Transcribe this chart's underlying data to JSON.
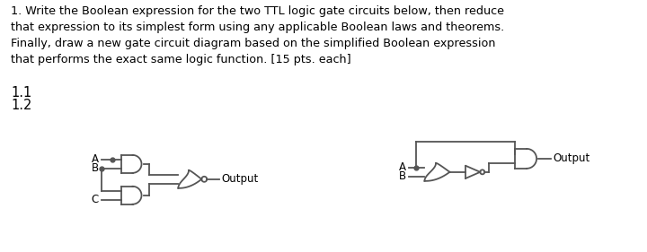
{
  "bg_color": "#ffffff",
  "text_color": "#000000",
  "line_color": "#555555",
  "title_text": "1. Write the Boolean expression for the two TTL logic gate circuits below, then reduce\nthat expression to its simplest form using any applicable Boolean laws and theorems.\nFinally, draw a new gate circuit diagram based on the simplified Boolean expression\nthat performs the exact same logic function. [15 pts. each]",
  "label_11": "1.1",
  "label_12": "1.2",
  "output_label": "Output",
  "font_size_title": 9.2,
  "font_size_label": 10.5,
  "font_size_io": 8.5,
  "line_color_rgb": "#555555",
  "lw": 1.3
}
